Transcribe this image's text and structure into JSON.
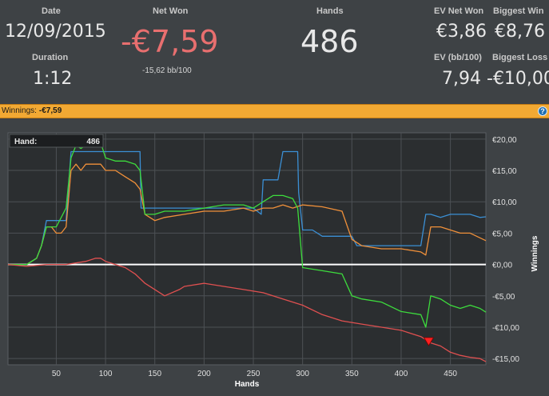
{
  "stats": {
    "date_label": "Date",
    "date_value": "12/09/2015",
    "duration_label": "Duration",
    "duration_value": "1:12",
    "net_won_label": "Net Won",
    "net_won_value": "-€7,59",
    "net_won_sub": "-15,62 bb/100",
    "hands_label": "Hands",
    "hands_value": "486",
    "ev_net_won_label": "EV Net Won",
    "ev_net_won_value": "€3,86",
    "biggest_win_label": "Biggest Win",
    "biggest_win_value": "€8,76",
    "ev_bb_label": "EV (bb/100)",
    "ev_bb_value": "7,94",
    "biggest_loss_label": "Biggest Loss",
    "biggest_loss_value": "-€10,00"
  },
  "winbar": {
    "label": "Winnings:",
    "value": "-€7,59",
    "help_glyph": "?"
  },
  "colors": {
    "negative": "#e86f6f",
    "blue": "#3b8fd4",
    "orange": "#f0903a",
    "green": "#3ddc3d",
    "red": "#e05050",
    "accent_bar": "#f2a933"
  },
  "chart_data": {
    "type": "line",
    "xlabel": "Hands",
    "ylabel": "Winnings",
    "xlim": [
      1,
      486
    ],
    "ylim": [
      -16,
      21
    ],
    "x_ticks": [
      50,
      100,
      150,
      200,
      250,
      300,
      350,
      400,
      450
    ],
    "x_tick_labels": [
      "50",
      "100",
      "150",
      "200",
      "250",
      "300",
      "350",
      "400",
      "450"
    ],
    "y_ticks": [
      20,
      15,
      10,
      5,
      0,
      -5,
      -10,
      -15
    ],
    "y_tick_labels": [
      "€20,00",
      "€15,00",
      "€10,00",
      "€5,00",
      "€0,00",
      "-€5,00",
      "-€10,00",
      "-€15,00"
    ],
    "grid": true,
    "tooltip": {
      "label": "Hand:",
      "value": "486"
    },
    "marker": {
      "x": 428,
      "y": -12.3
    },
    "series": [
      {
        "color": "#3b8fd4",
        "x": [
          1,
          20,
          25,
          30,
          35,
          40,
          45,
          55,
          60,
          65,
          70,
          75,
          80,
          85,
          90,
          95,
          100,
          135,
          136,
          140,
          145,
          150,
          175,
          200,
          240,
          250,
          258,
          260,
          265,
          270,
          275,
          280,
          295,
          296,
          300,
          310,
          320,
          350,
          355,
          420,
          425,
          430,
          440,
          450,
          460,
          470,
          480,
          486
        ],
        "y": [
          0,
          0,
          0.5,
          1,
          3,
          7,
          7,
          7,
          7,
          18,
          18,
          18,
          18,
          18,
          18,
          18,
          18,
          18,
          9,
          9,
          9,
          9,
          9,
          9,
          9,
          9,
          8,
          13.5,
          13.5,
          13.5,
          13.5,
          18,
          18,
          11.5,
          5.5,
          5.5,
          4.5,
          4.5,
          3,
          3,
          8,
          8,
          7.5,
          8,
          8,
          8,
          7.5,
          7.6
        ]
      },
      {
        "color": "#f0903a",
        "x": [
          1,
          20,
          25,
          30,
          35,
          40,
          45,
          50,
          55,
          60,
          65,
          70,
          75,
          80,
          85,
          90,
          95,
          100,
          110,
          120,
          130,
          135,
          140,
          150,
          160,
          180,
          200,
          220,
          240,
          250,
          260,
          270,
          280,
          290,
          300,
          320,
          340,
          350,
          360,
          380,
          400,
          420,
          425,
          430,
          440,
          450,
          460,
          470,
          486
        ],
        "y": [
          0,
          0,
          0.5,
          1,
          3,
          6,
          6,
          5,
          5,
          6,
          15,
          16,
          15,
          16,
          16,
          16,
          16,
          15,
          15,
          14,
          13,
          12,
          8,
          7,
          7.5,
          8,
          8.5,
          8.5,
          9,
          8.5,
          9,
          9,
          9.5,
          9,
          9.5,
          9.2,
          8.5,
          4,
          3,
          2.5,
          2.5,
          2,
          1.5,
          6,
          6,
          5.5,
          5,
          5,
          3.8
        ]
      },
      {
        "color": "#3ddc3d",
        "x": [
          1,
          20,
          25,
          30,
          35,
          40,
          45,
          50,
          55,
          60,
          65,
          70,
          75,
          80,
          85,
          90,
          95,
          100,
          110,
          120,
          130,
          135,
          140,
          150,
          160,
          180,
          200,
          220,
          240,
          250,
          260,
          270,
          280,
          290,
          295,
          300,
          320,
          340,
          350,
          360,
          380,
          400,
          420,
          425,
          430,
          440,
          450,
          460,
          470,
          480,
          486
        ],
        "y": [
          0,
          0,
          0.5,
          1,
          3,
          6,
          6,
          6,
          7.5,
          9,
          17,
          19,
          18.5,
          19,
          19.5,
          19.5,
          19.5,
          17,
          16.5,
          16.5,
          16,
          15,
          8,
          8,
          8.5,
          8.5,
          9,
          9.5,
          9.5,
          9,
          10,
          11,
          11,
          10.5,
          9,
          -0.5,
          -1,
          -1.5,
          -5,
          -5.5,
          -6,
          -7.5,
          -8,
          -10,
          -5,
          -5.5,
          -6.5,
          -7,
          -6.5,
          -7,
          -7.6
        ]
      },
      {
        "color": "#e05050",
        "x": [
          1,
          20,
          40,
          60,
          80,
          90,
          95,
          100,
          110,
          120,
          130,
          140,
          150,
          160,
          175,
          180,
          200,
          220,
          240,
          260,
          280,
          300,
          320,
          340,
          360,
          380,
          400,
          420,
          425,
          430,
          440,
          450,
          460,
          470,
          480,
          486
        ],
        "y": [
          0,
          -0.3,
          0,
          0,
          0.5,
          1,
          1,
          0.5,
          0,
          -0.5,
          -1.5,
          -3,
          -4,
          -5,
          -4,
          -3.5,
          -3,
          -3.5,
          -4,
          -4.5,
          -5.5,
          -6.5,
          -8,
          -9,
          -9.5,
          -10,
          -10.5,
          -11.5,
          -12,
          -12.5,
          -13,
          -14,
          -14.5,
          -14.8,
          -15,
          -15.5
        ]
      }
    ]
  }
}
